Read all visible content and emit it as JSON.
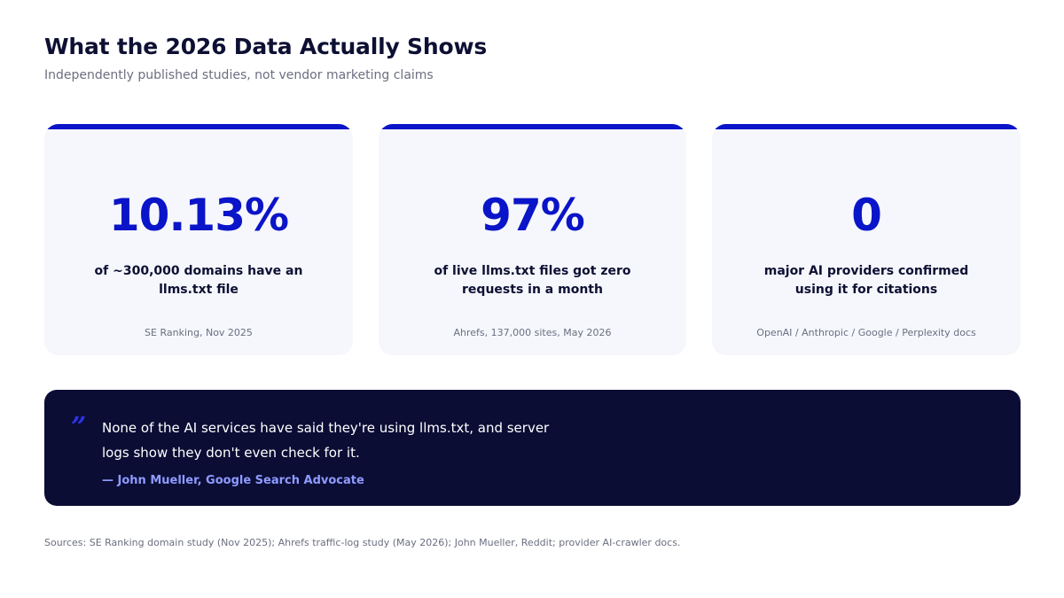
{
  "header": {
    "title": "What the 2026 Data Actually Shows",
    "subtitle": "Independently published studies, not vendor marketing claims"
  },
  "stats": [
    {
      "value": "10.13%",
      "description": "of ~300,000 domains have an llms.txt file",
      "source": "SE Ranking, Nov 2025"
    },
    {
      "value": "97%",
      "description": "of live llms.txt files got zero requests in a month",
      "source": "Ahrefs, 137,000 sites, May 2026"
    },
    {
      "value": "0",
      "description": "major AI providers confirmed using it for citations",
      "source": "OpenAI / Anthropic / Google / Perplexity docs"
    }
  ],
  "quote": {
    "mark": "”",
    "text": "None of the AI services have said they're using llms.txt, and server logs show they don't even check for it.",
    "author": "— John Mueller, Google Search Advocate"
  },
  "footer": {
    "sources": "Sources: SE Ranking domain study (Nov 2025); Ahrefs traffic-log study (May 2026); John Mueller, Reddit; provider AI-crawler docs."
  },
  "colors": {
    "accent": "#0a14c8",
    "dark": "#0b0d35",
    "card_background": "#f6f7fc",
    "quote_author": "#8f9bff"
  }
}
